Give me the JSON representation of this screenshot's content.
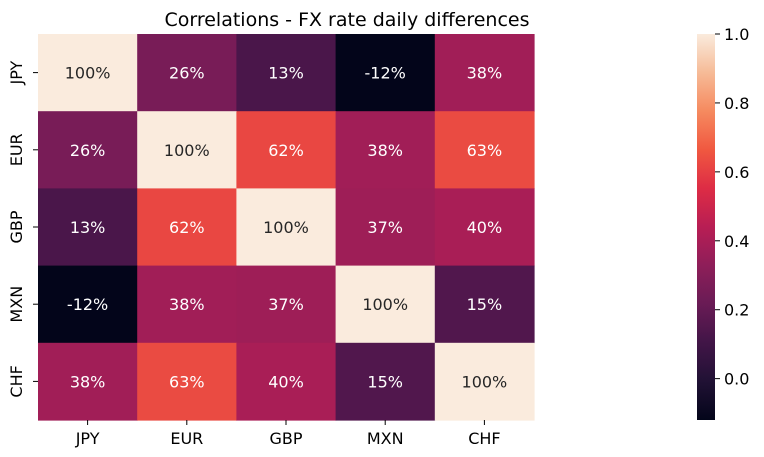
{
  "chart_data": {
    "type": "heatmap",
    "title": "Correlations - FX rate daily differences",
    "xlabel": "",
    "ylabel": "",
    "x_categories": [
      "JPY",
      "EUR",
      "GBP",
      "MXN",
      "CHF"
    ],
    "y_categories": [
      "JPY",
      "EUR",
      "GBP",
      "MXN",
      "CHF"
    ],
    "values": [
      [
        1.0,
        0.26,
        0.13,
        -0.12,
        0.38
      ],
      [
        0.26,
        1.0,
        0.62,
        0.38,
        0.63
      ],
      [
        0.13,
        0.62,
        1.0,
        0.37,
        0.4
      ],
      [
        -0.12,
        0.38,
        0.37,
        1.0,
        0.15
      ],
      [
        0.38,
        0.63,
        0.4,
        0.15,
        1.0
      ]
    ],
    "cell_labels": [
      [
        "100%",
        "26%",
        "13%",
        "-12%",
        "38%"
      ],
      [
        "26%",
        "100%",
        "62%",
        "38%",
        "63%"
      ],
      [
        "13%",
        "62%",
        "100%",
        "37%",
        "40%"
      ],
      [
        "-12%",
        "38%",
        "37%",
        "100%",
        "15%"
      ],
      [
        "38%",
        "63%",
        "40%",
        "15%",
        "100%"
      ]
    ],
    "colormap": "rocket",
    "vmin": -0.12,
    "vmax": 1.0,
    "colorbar": {
      "ticks": [
        0.0,
        0.2,
        0.4,
        0.6,
        0.8,
        1.0
      ],
      "tick_labels": [
        "0.0",
        "0.2",
        "0.4",
        "0.6",
        "0.8",
        "1.0"
      ],
      "placement": "right"
    },
    "grid": false
  }
}
